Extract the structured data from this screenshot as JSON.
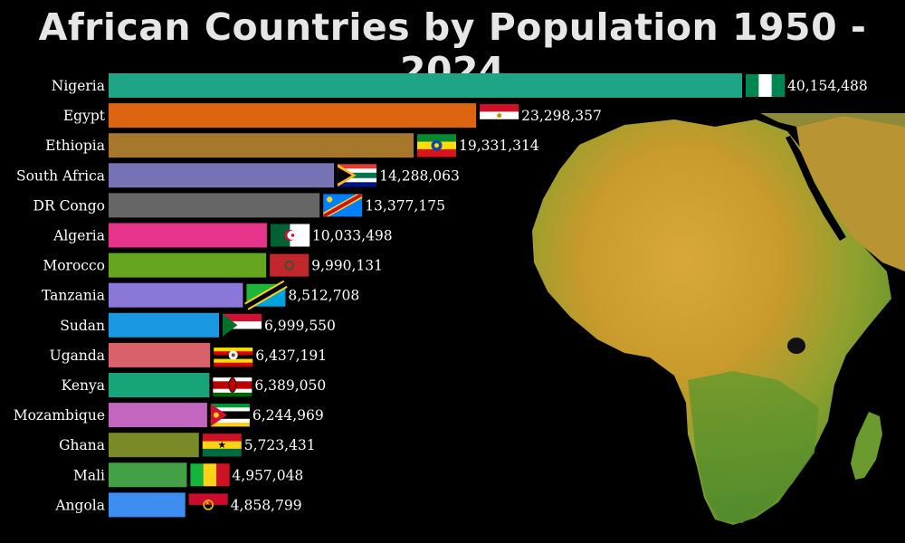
{
  "title": "African Countries by Population 1950 - 2024",
  "chart_data": {
    "type": "bar",
    "orientation": "horizontal",
    "title": "African Countries by Population 1950 - 2024",
    "xlabel": "",
    "ylabel": "",
    "grid": false,
    "xlim": [
      0,
      40154488
    ],
    "categories": [
      "Nigeria",
      "Egypt",
      "Ethiopia",
      "South Africa",
      "DR Congo",
      "Algeria",
      "Morocco",
      "Tanzania",
      "Sudan",
      "Uganda",
      "Kenya",
      "Mozambique",
      "Ghana",
      "Mali",
      "Angola"
    ],
    "values": [
      40154488,
      23298357,
      19331314,
      14288063,
      13377175,
      10033498,
      9990131,
      8512708,
      6999550,
      6437191,
      6389050,
      6244969,
      5723431,
      4957048,
      4858799
    ],
    "value_labels": [
      "40,154,488",
      "23,298,357",
      "19,331,314",
      "14,288,063",
      "13,377,175",
      "10,033,498",
      "9,990,131",
      "8,512,708",
      "6,999,550",
      "6,437,191",
      "6,389,050",
      "6,244,969",
      "5,723,431",
      "4,957,048",
      "4,858,799"
    ],
    "colors": [
      "#1fa486",
      "#db6510",
      "#a7782c",
      "#7772b3",
      "#666666",
      "#e8338b",
      "#66a61e",
      "#8a77d8",
      "#1a98e2",
      "#d9616b",
      "#16a478",
      "#c366c0",
      "#7a8a26",
      "#43a047",
      "#3d8ef0"
    ],
    "flags": [
      "nigeria-flag",
      "egypt-flag",
      "ethiopia-flag",
      "south-africa-flag",
      "dr-congo-flag",
      "algeria-flag",
      "morocco-flag",
      "tanzania-flag",
      "sudan-flag",
      "uganda-flag",
      "kenya-flag",
      "mozambique-flag",
      "ghana-flag",
      "mali-flag",
      "angola-flag"
    ]
  }
}
